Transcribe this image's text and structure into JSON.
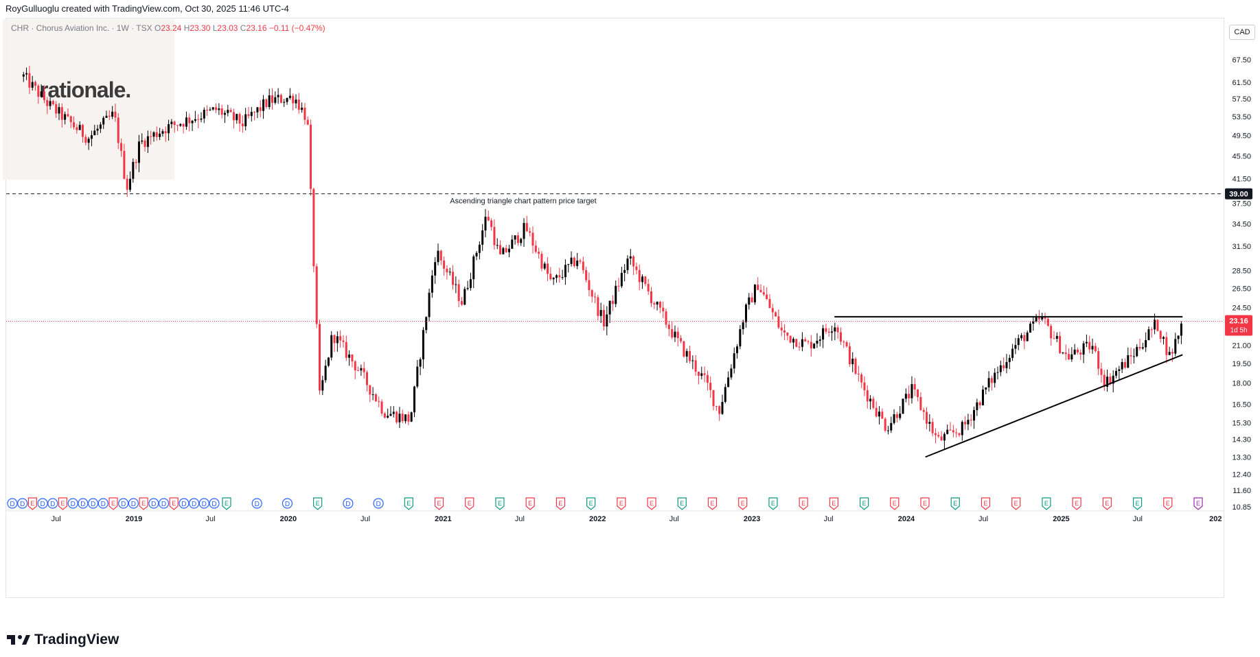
{
  "header": {
    "credit": "RoyGulluoglu created with TradingView.com, Oct 30, 2025 11:46 UTC-4"
  },
  "legend": {
    "symbol": "CHR · Chorus Aviation Inc. · 1W · TSX",
    "open_label": "O",
    "open": "23.24",
    "high_label": "H",
    "high": "23.30",
    "low_label": "L",
    "low": "23.03",
    "close_label": "C",
    "close": "23.16",
    "change": "−0.11 (−0.47%)"
  },
  "watermark": {
    "text": "rationale."
  },
  "currency": "CAD",
  "price_badge": {
    "price": "23.16",
    "countdown": "1d 5h"
  },
  "target_badge": "39.00",
  "annotation": "Ascending triangle chart pattern price target",
  "footer": {
    "brand": "TradingView"
  },
  "colors": {
    "up": "#000000",
    "down": "#f23645",
    "grid": "#f0f3fa",
    "dividend_blue": "#2962ff",
    "earnings_red": "#f23645",
    "earnings_green": "#089981",
    "earnings_purple": "#9c27b0",
    "earnings_orange": "#ff9800"
  },
  "chart_data": {
    "type": "candlestick",
    "timeframe": "1W",
    "y_axis": {
      "scale": "log",
      "ticks": [
        "67.50",
        "61.50",
        "57.50",
        "53.50",
        "49.50",
        "45.50",
        "41.50",
        "37.50",
        "34.50",
        "31.50",
        "28.50",
        "26.50",
        "24.50",
        "23.16",
        "21.00",
        "19.50",
        "18.00",
        "16.50",
        "15.30",
        "14.30",
        "13.30",
        "12.40",
        "11.60",
        "10.85"
      ]
    },
    "x_axis": {
      "ticks": [
        {
          "label": "Jul",
          "bold": false
        },
        {
          "label": "2019",
          "bold": true
        },
        {
          "label": "Jul",
          "bold": false
        },
        {
          "label": "2020",
          "bold": true
        },
        {
          "label": "Jul",
          "bold": false
        },
        {
          "label": "2021",
          "bold": true
        },
        {
          "label": "Jul",
          "bold": false
        },
        {
          "label": "2022",
          "bold": true
        },
        {
          "label": "Jul",
          "bold": false
        },
        {
          "label": "2023",
          "bold": true
        },
        {
          "label": "Jul",
          "bold": false
        },
        {
          "label": "2024",
          "bold": true
        },
        {
          "label": "Jul",
          "bold": false
        },
        {
          "label": "2025",
          "bold": true
        },
        {
          "label": "Jul",
          "bold": false
        },
        {
          "label": "202",
          "bold": true
        }
      ]
    },
    "anchors": [
      {
        "date": "2018-04",
        "price": 63
      },
      {
        "date": "2018-06",
        "price": 56
      },
      {
        "date": "2018-09",
        "price": 49
      },
      {
        "date": "2018-11",
        "price": 54
      },
      {
        "date": "2018-12",
        "price": 40
      },
      {
        "date": "2019-01",
        "price": 48
      },
      {
        "date": "2019-03",
        "price": 51
      },
      {
        "date": "2019-05",
        "price": 53
      },
      {
        "date": "2019-07",
        "price": 55
      },
      {
        "date": "2019-09",
        "price": 52
      },
      {
        "date": "2019-11",
        "price": 57
      },
      {
        "date": "2020-01",
        "price": 58
      },
      {
        "date": "2020-02",
        "price": 53
      },
      {
        "date": "2020-03",
        "price": 17
      },
      {
        "date": "2020-04",
        "price": 22
      },
      {
        "date": "2020-06",
        "price": 19
      },
      {
        "date": "2020-08",
        "price": 16
      },
      {
        "date": "2020-10",
        "price": 15.5
      },
      {
        "date": "2020-11",
        "price": 22
      },
      {
        "date": "2020-12",
        "price": 31
      },
      {
        "date": "2021-02",
        "price": 25
      },
      {
        "date": "2021-04",
        "price": 36
      },
      {
        "date": "2021-05",
        "price": 30
      },
      {
        "date": "2021-07",
        "price": 34
      },
      {
        "date": "2021-09",
        "price": 27
      },
      {
        "date": "2021-11",
        "price": 30
      },
      {
        "date": "2022-01",
        "price": 23
      },
      {
        "date": "2022-03",
        "price": 30
      },
      {
        "date": "2022-05",
        "price": 25
      },
      {
        "date": "2022-07",
        "price": 21
      },
      {
        "date": "2022-09",
        "price": 18
      },
      {
        "date": "2022-10",
        "price": 16
      },
      {
        "date": "2022-12",
        "price": 24
      },
      {
        "date": "2023-01",
        "price": 27
      },
      {
        "date": "2023-03",
        "price": 22
      },
      {
        "date": "2023-05",
        "price": 21
      },
      {
        "date": "2023-07",
        "price": 23
      },
      {
        "date": "2023-09",
        "price": 18
      },
      {
        "date": "2023-11",
        "price": 15
      },
      {
        "date": "2024-01",
        "price": 17.5
      },
      {
        "date": "2024-03",
        "price": 14.2
      },
      {
        "date": "2024-05",
        "price": 15
      },
      {
        "date": "2024-07",
        "price": 18
      },
      {
        "date": "2024-09",
        "price": 21
      },
      {
        "date": "2024-11",
        "price": 23.5
      },
      {
        "date": "2025-01",
        "price": 20
      },
      {
        "date": "2025-03",
        "price": 21
      },
      {
        "date": "2025-04",
        "price": 18
      },
      {
        "date": "2025-06",
        "price": 20
      },
      {
        "date": "2025-08",
        "price": 23
      },
      {
        "date": "2025-09",
        "price": 20
      },
      {
        "date": "2025-10",
        "price": 23.16
      }
    ],
    "horizontal_lines": [
      {
        "price": 39.0,
        "style": "dashed",
        "label": "Ascending triangle chart pattern price target"
      },
      {
        "price": 23.16,
        "style": "dotted",
        "color": "#f23645"
      }
    ],
    "trendlines": [
      {
        "name": "resistance",
        "from": {
          "date": "2023-07",
          "price": 23.6
        },
        "to": {
          "date": "2025-10",
          "price": 23.6
        }
      },
      {
        "name": "support",
        "from": {
          "date": "2024-02",
          "price": 13.3
        },
        "to": {
          "date": "2025-10",
          "price": 20.2
        }
      }
    ],
    "events": [
      "D",
      "D",
      "E",
      "D",
      "D",
      "E",
      "D",
      "D",
      "D",
      "D",
      "E",
      "D",
      "D",
      "E",
      "D",
      "D",
      "E",
      "D",
      "D",
      "D",
      "D",
      "E",
      "D",
      "D",
      "E",
      "D",
      "D",
      "E",
      "E",
      "E",
      "E",
      "E",
      "E",
      "E",
      "E",
      "E",
      "E",
      "E",
      "E",
      "E",
      "E",
      "E",
      "E",
      "E",
      "E",
      "E",
      "E",
      "E",
      "E",
      "E",
      "E",
      "E",
      "E",
      "E"
    ]
  }
}
